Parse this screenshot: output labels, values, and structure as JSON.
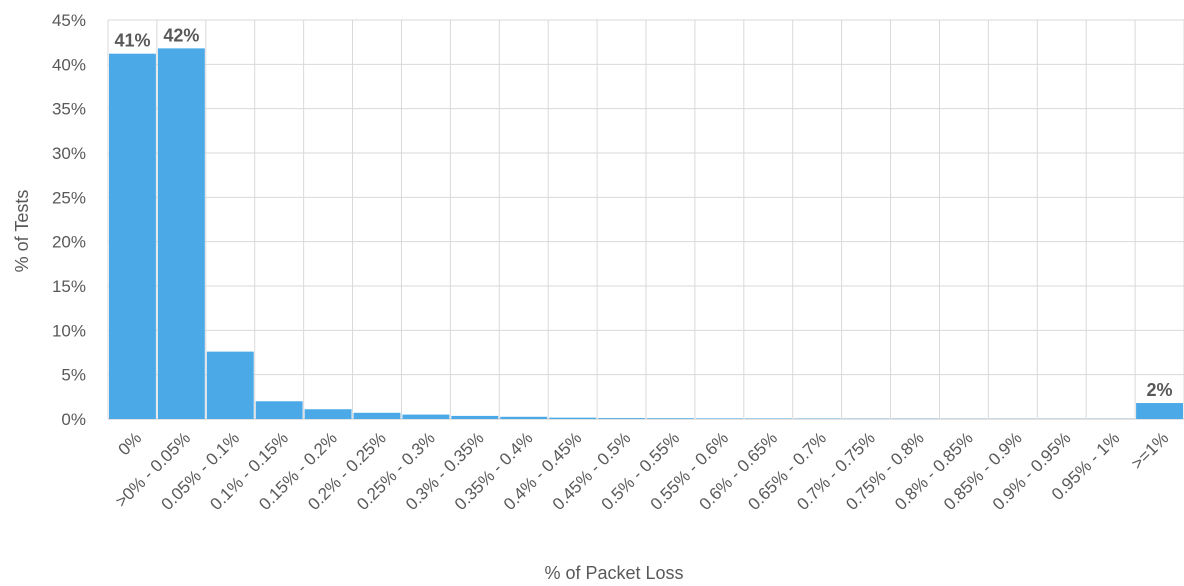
{
  "chart_data": {
    "type": "bar",
    "title": "",
    "xlabel": "% of Packet Loss",
    "ylabel": "% of Tests",
    "categories": [
      "0%",
      ">0% - 0.05%",
      "0.05% - 0.1%",
      "0.1% - 0.15%",
      "0.15% - 0.2%",
      "0.2% - 0.25%",
      "0.25% - 0.3%",
      "0.3% - 0.35%",
      "0.35% - 0.4%",
      "0.4% - 0.45%",
      "0.45% - 0.5%",
      "0.5% - 0.55%",
      "0.55% - 0.6%",
      "0.6% - 0.65%",
      "0.65% - 0.7%",
      "0.7% - 0.75%",
      "0.75% - 0.8%",
      "0.8% - 0.85%",
      "0.85% - 0.9%",
      "0.9% - 0.95%",
      "0.95% - 1%",
      ">=1%"
    ],
    "values": [
      41.2,
      41.8,
      7.6,
      2.0,
      1.1,
      0.7,
      0.5,
      0.35,
      0.25,
      0.15,
      0.1,
      0.08,
      0.06,
      0.05,
      0.04,
      0.03,
      0.03,
      0.02,
      0.02,
      0.02,
      0.02,
      1.8
    ],
    "data_labels": [
      "41%",
      "42%",
      "",
      "",
      "",
      "",
      "",
      "",
      "",
      "",
      "",
      "",
      "",
      "",
      "",
      "",
      "",
      "",
      "",
      "",
      "",
      "2%"
    ],
    "ylim": [
      0,
      45
    ],
    "yticks": [
      0,
      5,
      10,
      15,
      20,
      25,
      30,
      35,
      40,
      45
    ],
    "ytick_labels": [
      "0%",
      "5%",
      "10%",
      "15%",
      "20%",
      "25%",
      "30%",
      "35%",
      "40%",
      "45%"
    ],
    "grid": true,
    "legend": "none",
    "bar_color": "#4BA9E8",
    "grid_color": "#D9D9D9",
    "text_color": "#595959"
  }
}
